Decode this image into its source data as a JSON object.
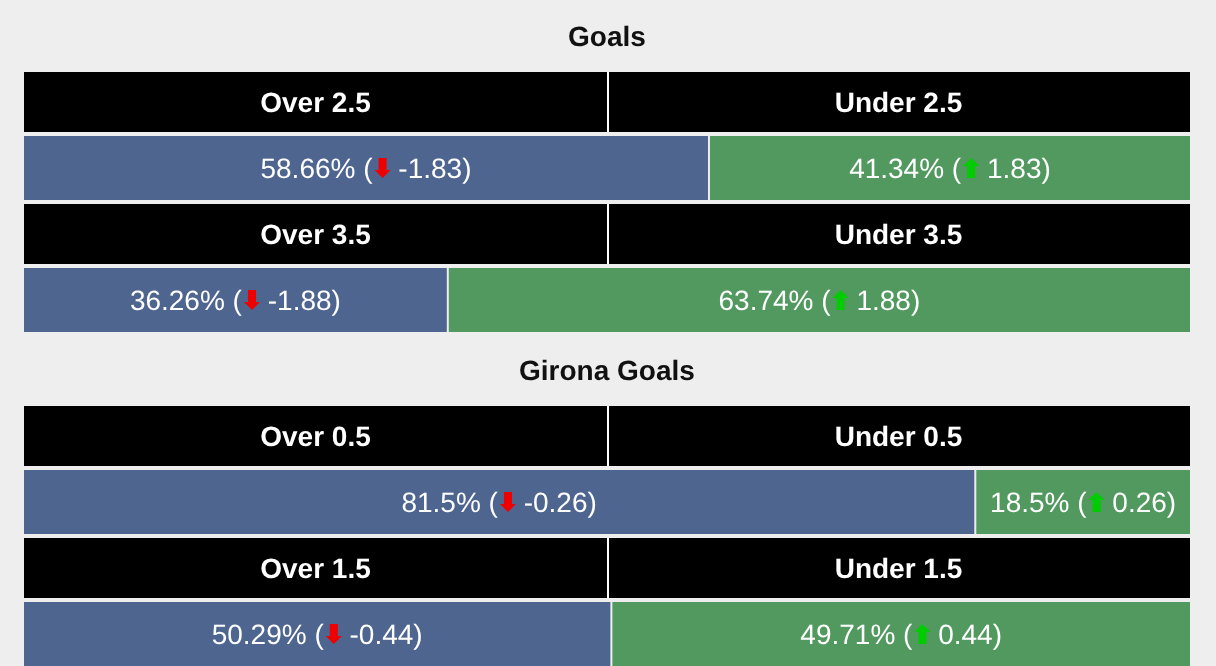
{
  "chart_data": [
    {
      "type": "bar",
      "title": "Goals",
      "orientation": "horizontal",
      "stacked": true,
      "categories": [
        null
      ],
      "legend": "top",
      "series": [
        {
          "name": "Over 2.5",
          "color": "#4e6590",
          "values": [
            58.66
          ],
          "value_labels": [
            "58.66% ( -1.83)"
          ]
        },
        {
          "name": "Under 2.5",
          "color": "#52995f",
          "values": [
            41.34
          ],
          "value_labels": [
            "41.34% ( 1.83)"
          ]
        }
      ]
    },
    {
      "type": "bar",
      "orientation": "horizontal",
      "stacked": true,
      "categories": [
        null
      ],
      "legend": "top",
      "series": [
        {
          "name": "Over 3.5",
          "color": "#4e6590",
          "values": [
            36.26
          ],
          "value_labels": [
            "36.26% ( -1.88)"
          ]
        },
        {
          "name": "Under 3.5",
          "color": "#52995f",
          "values": [
            63.74
          ],
          "value_labels": [
            "63.74% ( 1.88)"
          ]
        }
      ]
    },
    {
      "type": "bar",
      "title": "Girona Goals",
      "orientation": "horizontal",
      "stacked": true,
      "categories": [
        null
      ],
      "legend": "top",
      "series": [
        {
          "name": "Over 0.5",
          "color": "#4e6590",
          "values": [
            81.5
          ],
          "value_labels": [
            "81.5% ( -0.26)"
          ]
        },
        {
          "name": "Under 0.5",
          "color": "#52995f",
          "values": [
            18.5
          ],
          "value_labels": [
            "18.5% ( 0.26)"
          ]
        }
      ]
    },
    {
      "type": "bar",
      "orientation": "horizontal",
      "stacked": true,
      "categories": [
        null
      ],
      "legend": "top",
      "series": [
        {
          "name": "Over 1.5",
          "color": "#4e6590",
          "values": [
            50.29
          ],
          "value_labels": [
            "50.29% ( -0.44)"
          ]
        },
        {
          "name": "Under 1.5",
          "color": "#52995f",
          "values": [
            49.71
          ],
          "value_labels": [
            "49.71% ( 0.44)"
          ]
        }
      ]
    }
  ]
}
